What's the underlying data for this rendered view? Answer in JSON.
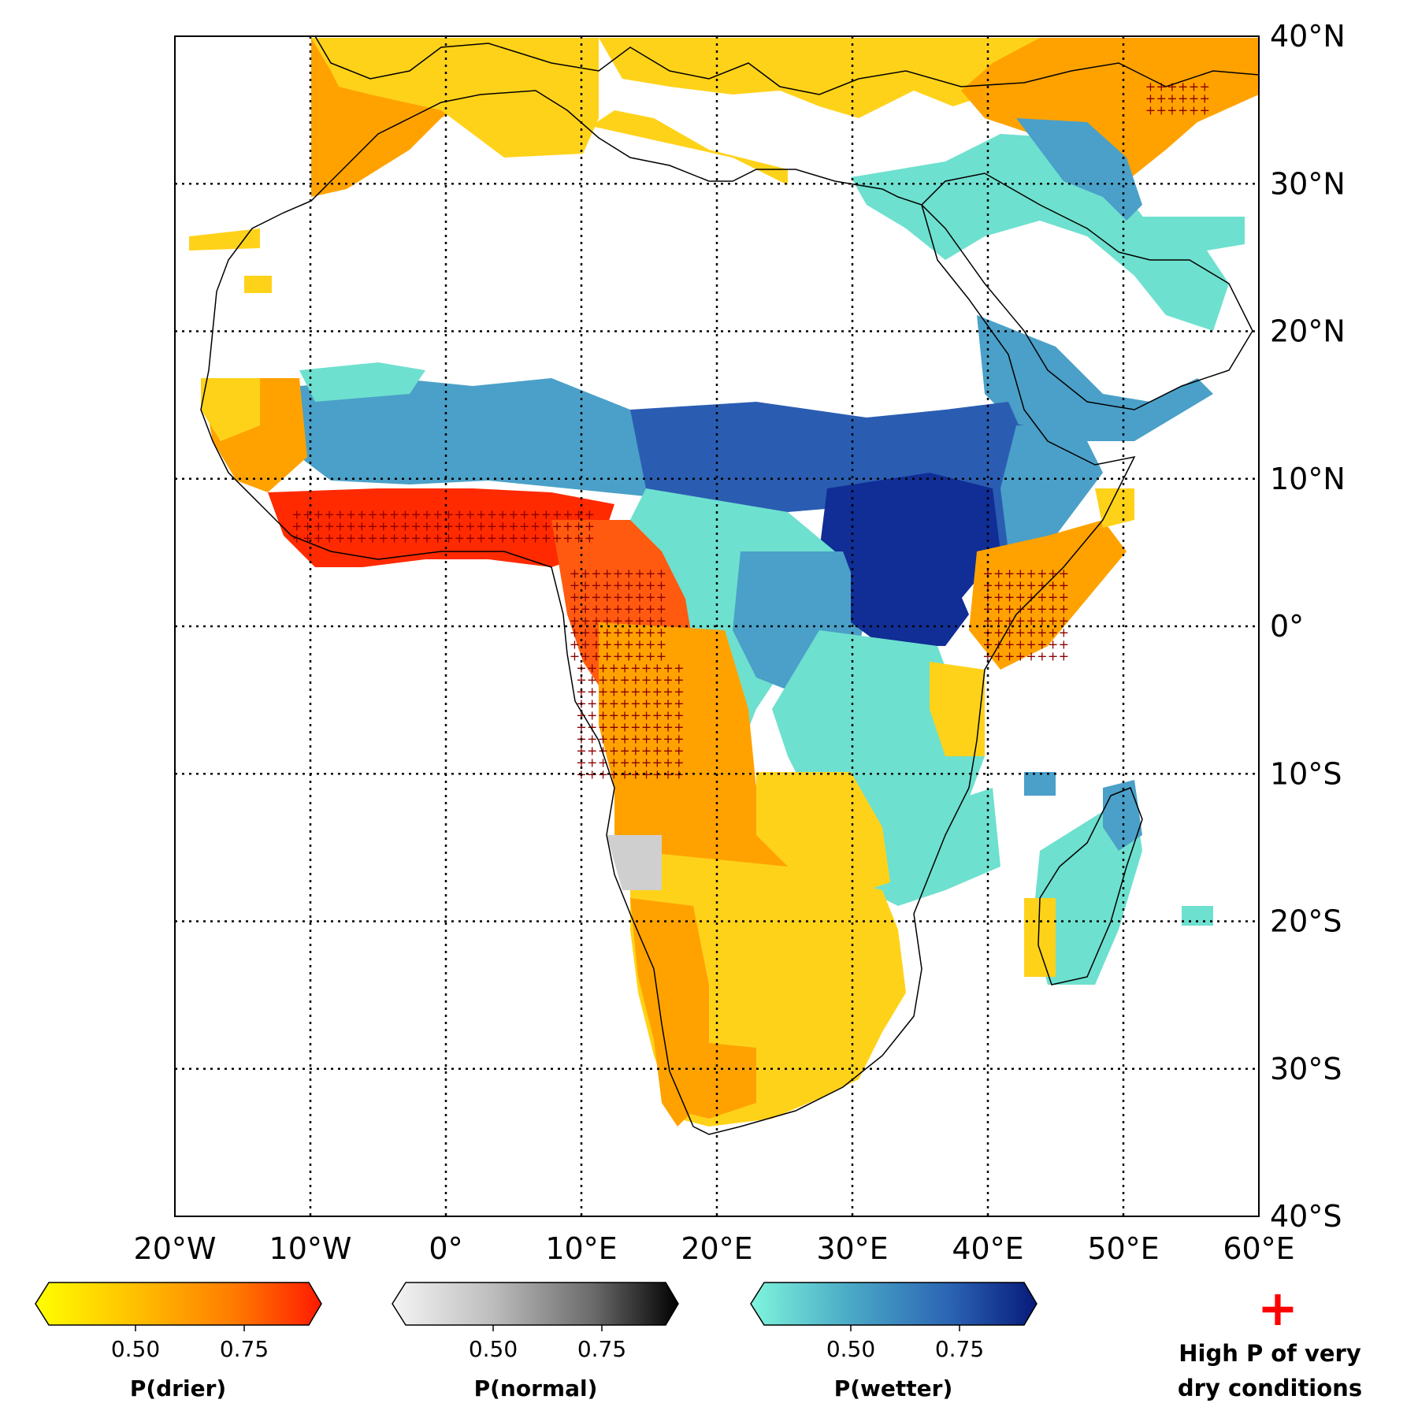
{
  "map": {
    "lon_range": [
      -20,
      60
    ],
    "lat_range": [
      -40,
      40
    ],
    "lon_ticks": [
      "20°W",
      "10°W",
      "0°",
      "10°E",
      "20°E",
      "30°E",
      "40°E",
      "50°E",
      "60°E"
    ],
    "lat_ticks": [
      "40°N",
      "30°N",
      "20°N",
      "10°N",
      "0°",
      "10°S",
      "20°S",
      "30°S",
      "40°S"
    ],
    "grid": "dotted"
  },
  "colorbars": [
    {
      "title": "P(drier)",
      "ticks": [
        "0.50",
        "0.75"
      ],
      "colors": [
        "#ffff00",
        "#ffc000",
        "#ff7a00",
        "#ff1a00"
      ]
    },
    {
      "title": "P(normal)",
      "ticks": [
        "0.50",
        "0.75"
      ],
      "colors": [
        "#f5f5f5",
        "#bdbdbd",
        "#6b6b6b",
        "#000000"
      ]
    },
    {
      "title": "P(wetter)",
      "ticks": [
        "0.50",
        "0.75"
      ],
      "colors": [
        "#7ff5dc",
        "#49a9c6",
        "#2b63b3",
        "#061a7a"
      ]
    }
  ],
  "legend": {
    "symbol": "+",
    "symbol_color": "#ff0000",
    "line1": "High P of very",
    "line2": "dry conditions"
  },
  "colors": {
    "drier_light": "#ffd21a",
    "drier_mid": "#ffa200",
    "drier_strong": "#ff5a10",
    "drier_extreme": "#ff2a00",
    "normal": "#cfcfcf",
    "wetter_light": "#6ee0cf",
    "wetter_mid": "#4aa0c8",
    "wetter_strong": "#2a5db2",
    "wetter_extreme": "#102e95"
  }
}
